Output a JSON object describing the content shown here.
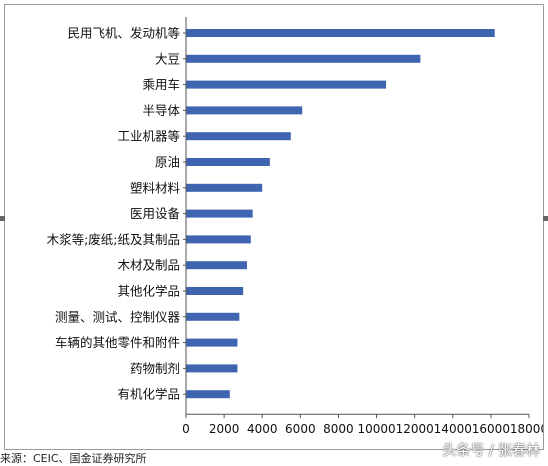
{
  "chart_data": {
    "type": "bar",
    "orientation": "horizontal",
    "categories": [
      "民用飞机、发动机等",
      "大豆",
      "乘用车",
      "半导体",
      "工业机器等",
      "原油",
      "塑料材料",
      "医用设备",
      "木浆等;废纸;纸及其制品",
      "木材及制品",
      "其他化学品",
      "测量、测试、控制仪器",
      "车辆的其他零件和附件",
      "药物制剂",
      "有机化学品"
    ],
    "values": [
      16200,
      12300,
      10500,
      6100,
      5500,
      4400,
      4000,
      3500,
      3400,
      3200,
      3000,
      2800,
      2700,
      2700,
      2300
    ],
    "xlim": [
      0,
      18000
    ],
    "xticks": [
      0,
      2000,
      4000,
      6000,
      8000,
      10000,
      12000,
      14000,
      16000,
      18000
    ],
    "bar_color": "#3f65b0",
    "grid": false
  },
  "footer": {
    "source": "来源：CEIC、国金证券研究所",
    "watermark": "头条号 / 张春林"
  }
}
